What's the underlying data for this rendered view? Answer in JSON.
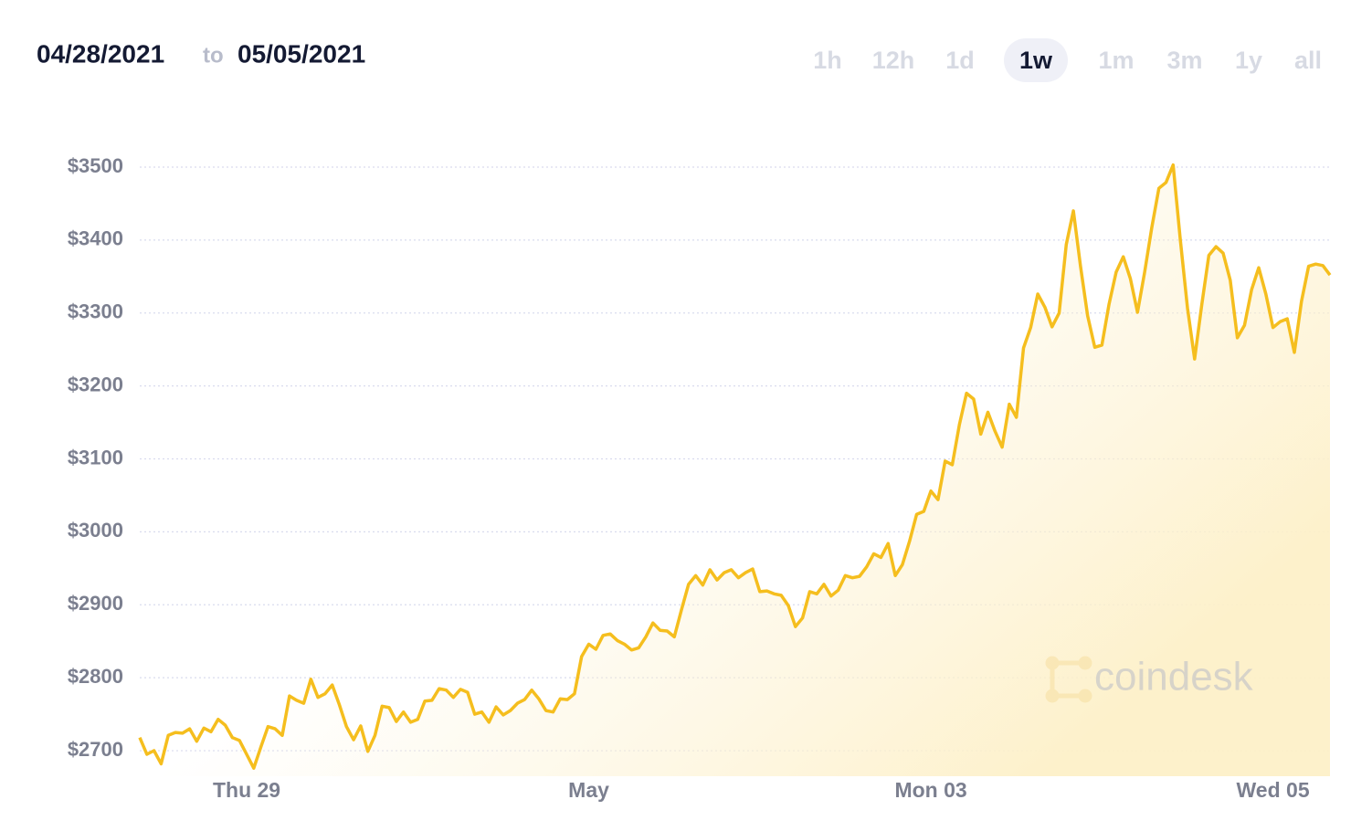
{
  "header": {
    "from": "04/28/2021",
    "to_word": "to",
    "to": "05/05/2021"
  },
  "ranges": [
    "1h",
    "12h",
    "1d",
    "1w",
    "1m",
    "3m",
    "1y",
    "all"
  ],
  "selected_range": 3,
  "watermark": "coindesk",
  "chart_data": {
    "type": "line",
    "categories": [
      null,
      null,
      null,
      null,
      null,
      null,
      null,
      null,
      null,
      null,
      null,
      null,
      null,
      null,
      null,
      "Thu 29",
      null,
      null,
      null,
      null,
      null,
      null,
      null,
      null,
      null,
      null,
      null,
      null,
      null,
      null,
      null,
      null,
      null,
      null,
      null,
      null,
      null,
      null,
      null,
      null,
      null,
      null,
      null,
      null,
      null,
      null,
      null,
      null,
      null,
      null,
      null,
      null,
      null,
      null,
      null,
      null,
      null,
      null,
      null,
      null,
      null,
      null,
      null,
      "May",
      null,
      null,
      null,
      null,
      null,
      null,
      null,
      null,
      null,
      null,
      null,
      null,
      null,
      null,
      null,
      null,
      null,
      null,
      null,
      null,
      null,
      null,
      null,
      null,
      null,
      null,
      null,
      null,
      null,
      null,
      null,
      null,
      null,
      null,
      null,
      null,
      null,
      null,
      null,
      null,
      null,
      null,
      null,
      null,
      null,
      null,
      null,
      "Mon 03",
      null,
      null,
      null,
      null,
      null,
      null,
      null,
      null,
      null,
      null,
      null,
      null,
      null,
      null,
      null,
      null,
      null,
      null,
      null,
      null,
      null,
      null,
      null,
      null,
      null,
      null,
      null,
      null,
      null,
      null,
      null,
      null,
      null,
      null,
      null,
      null,
      null,
      null,
      null,
      null,
      null,
      null,
      null,
      null,
      null,
      null,
      null,
      "Wed 05",
      null,
      null,
      null,
      null,
      null,
      null,
      null,
      null
    ],
    "values": [
      2718,
      2695,
      2700,
      2682,
      2721,
      2725,
      2724,
      2730,
      2713,
      2731,
      2726,
      2743,
      2735,
      2718,
      2714,
      2695,
      2676,
      2705,
      2733,
      2730,
      2721,
      2775,
      2769,
      2765,
      2798,
      2773,
      2778,
      2790,
      2763,
      2733,
      2715,
      2734,
      2699,
      2721,
      2761,
      2759,
      2740,
      2753,
      2739,
      2743,
      2768,
      2769,
      2785,
      2783,
      2773,
      2784,
      2780,
      2750,
      2753,
      2739,
      2760,
      2749,
      2755,
      2765,
      2770,
      2783,
      2771,
      2755,
      2753,
      2771,
      2770,
      2778,
      2829,
      2846,
      2839,
      2858,
      2860,
      2851,
      2846,
      2838,
      2841,
      2856,
      2875,
      2865,
      2864,
      2856,
      2893,
      2928,
      2940,
      2927,
      2948,
      2934,
      2944,
      2948,
      2937,
      2944,
      2949,
      2918,
      2919,
      2915,
      2913,
      2899,
      2870,
      2882,
      2918,
      2915,
      2928,
      2912,
      2920,
      2940,
      2937,
      2939,
      2952,
      2970,
      2965,
      2984,
      2940,
      2955,
      2987,
      3024,
      3028,
      3056,
      3044,
      3097,
      3092,
      3147,
      3190,
      3182,
      3134,
      3164,
      3138,
      3116,
      3175,
      3157,
      3252,
      3280,
      3326,
      3308,
      3281,
      3300,
      3394,
      3440,
      3364,
      3296,
      3253,
      3256,
      3312,
      3356,
      3377,
      3347,
      3301,
      3356,
      3417,
      3471,
      3479,
      3503,
      3401,
      3307,
      3237,
      3311,
      3379,
      3391,
      3382,
      3345,
      3266,
      3283,
      3332,
      3362,
      3326,
      3280,
      3288,
      3292,
      3246,
      3316,
      3364,
      3367,
      3365,
      3352
    ],
    "color": "#f5be1e",
    "ylim": [
      2665,
      3510
    ],
    "yticks": [
      {
        "value": 2700,
        "label": "$2700"
      },
      {
        "value": 2800,
        "label": "$2800"
      },
      {
        "value": 2900,
        "label": "$2900"
      },
      {
        "value": 3000,
        "label": "$3000"
      },
      {
        "value": 3100,
        "label": "$3100"
      },
      {
        "value": 3200,
        "label": "$3200"
      },
      {
        "value": 3300,
        "label": "$3300"
      },
      {
        "value": 3400,
        "label": "$3400"
      },
      {
        "value": 3500,
        "label": "$3500"
      }
    ],
    "grid": true
  }
}
